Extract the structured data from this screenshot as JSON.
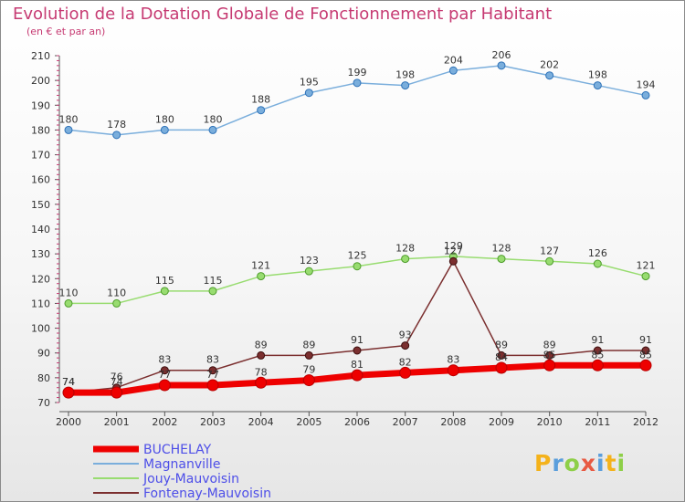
{
  "header": {
    "title": "Evolution de la Dotation Globale de Fonctionnement par Habitant",
    "subtitle": "(en € et par an)"
  },
  "chart_data": {
    "type": "line",
    "title": "Evolution de la Dotation Globale de Fonctionnement par Habitant",
    "subtitle": "(en € et par an)",
    "x": [
      "2000",
      "2001",
      "2002",
      "2003",
      "2004",
      "2005",
      "2006",
      "2007",
      "2008",
      "2009",
      "2010",
      "2011",
      "2012"
    ],
    "ylim": [
      70,
      210
    ],
    "yticks": [
      70,
      80,
      90,
      100,
      110,
      120,
      130,
      140,
      150,
      160,
      170,
      180,
      190,
      200,
      210
    ],
    "grid": false,
    "legend_position": "bottom-left",
    "series": [
      {
        "name": "BUCHELAY",
        "color": "#ee0000",
        "values": [
          74,
          74,
          77,
          77,
          78,
          79,
          81,
          82,
          83,
          84,
          85,
          85,
          85
        ]
      },
      {
        "name": "Magnanville",
        "color": "#7aaedc",
        "values": [
          180,
          178,
          180,
          180,
          188,
          195,
          199,
          198,
          204,
          206,
          202,
          198,
          194
        ]
      },
      {
        "name": "Jouy-Mauvoisin",
        "color": "#98dc70",
        "values": [
          110,
          110,
          115,
          115,
          121,
          123,
          125,
          128,
          129,
          128,
          127,
          126,
          121
        ]
      },
      {
        "name": "Fontenay-Mauvoisin",
        "color": "#7b2f2f",
        "values": [
          74,
          76,
          83,
          83,
          89,
          89,
          91,
          93,
          127,
          89,
          89,
          91,
          91
        ]
      }
    ]
  },
  "logo": {
    "text": "Proxiti"
  }
}
